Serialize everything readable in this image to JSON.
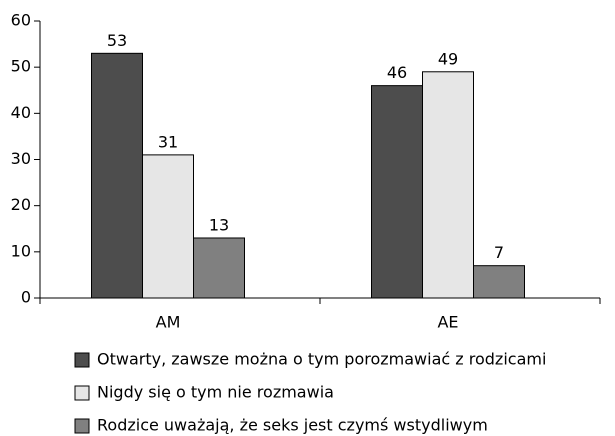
{
  "chart_data": {
    "type": "bar",
    "categories": [
      "AM",
      "AE"
    ],
    "series": [
      {
        "name": "Otwarty, zawsze można o tym porozmawiać z rodzicami",
        "color": "#4d4d4d",
        "values": [
          53,
          46
        ]
      },
      {
        "name": "Nigdy się o tym nie rozmawia",
        "color": "#e6e6e6",
        "values": [
          31,
          49
        ]
      },
      {
        "name": "Rodzice uważają, że seks jest czymś wstydliwym",
        "color": "#808080",
        "values": [
          13,
          7
        ]
      }
    ],
    "ylim": [
      0,
      60
    ],
    "yticks": [
      0,
      10,
      20,
      30,
      40,
      50,
      60
    ],
    "grid": false,
    "legend": "bottom"
  }
}
